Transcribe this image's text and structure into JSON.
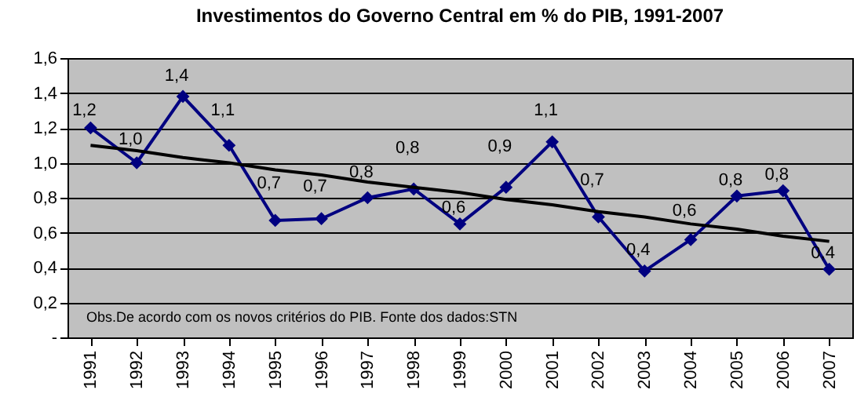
{
  "chart_data": {
    "type": "line",
    "title": "Investimentos do Governo Central em % do PIB, 1991-2007",
    "categories": [
      "1991",
      "1992",
      "1993",
      "1994",
      "1995",
      "1996",
      "1997",
      "1998",
      "1999",
      "2000",
      "2001",
      "2002",
      "2003",
      "2004",
      "2005",
      "2006",
      "2007"
    ],
    "series": [
      {
        "color": "#000080",
        "marker": "diamond",
        "values": [
          1.2,
          1.0,
          1.38,
          1.1,
          0.67,
          0.68,
          0.8,
          0.85,
          0.65,
          0.86,
          1.12,
          0.69,
          0.38,
          0.56,
          0.81,
          0.84,
          0.39
        ],
        "value_labels": [
          "1,2",
          "1,0",
          "1,4",
          "1,1",
          "0,7",
          "0,7",
          "0,8",
          "0,8",
          "0,6",
          "0,9",
          "1,1",
          "0,7",
          "0,4",
          "0,6",
          "0,8",
          "0,8",
          "0,4"
        ]
      },
      {
        "color": "#000000",
        "marker": "none",
        "values": [
          1.1,
          1.07,
          1.03,
          1.0,
          0.96,
          0.93,
          0.89,
          0.86,
          0.83,
          0.79,
          0.76,
          0.72,
          0.69,
          0.65,
          0.62,
          0.58,
          0.55
        ]
      }
    ],
    "ylim": [
      0,
      1.6
    ],
    "yticks": [
      {
        "value": 0,
        "label": "-"
      },
      {
        "value": 0.2,
        "label": "0,2"
      },
      {
        "value": 0.4,
        "label": "0,4"
      },
      {
        "value": 0.6,
        "label": "0,6"
      },
      {
        "value": 0.8,
        "label": "0,8"
      },
      {
        "value": 1.0,
        "label": "1,0"
      },
      {
        "value": 1.2,
        "label": "1,2"
      },
      {
        "value": 1.4,
        "label": "1,4"
      },
      {
        "value": 1.6,
        "label": "1,6"
      }
    ],
    "grid": "y",
    "line_style": "solid",
    "annotations": [
      "Obs.De acordo com os novos critérios do PIB. Fonte dos dados:STN"
    ]
  }
}
